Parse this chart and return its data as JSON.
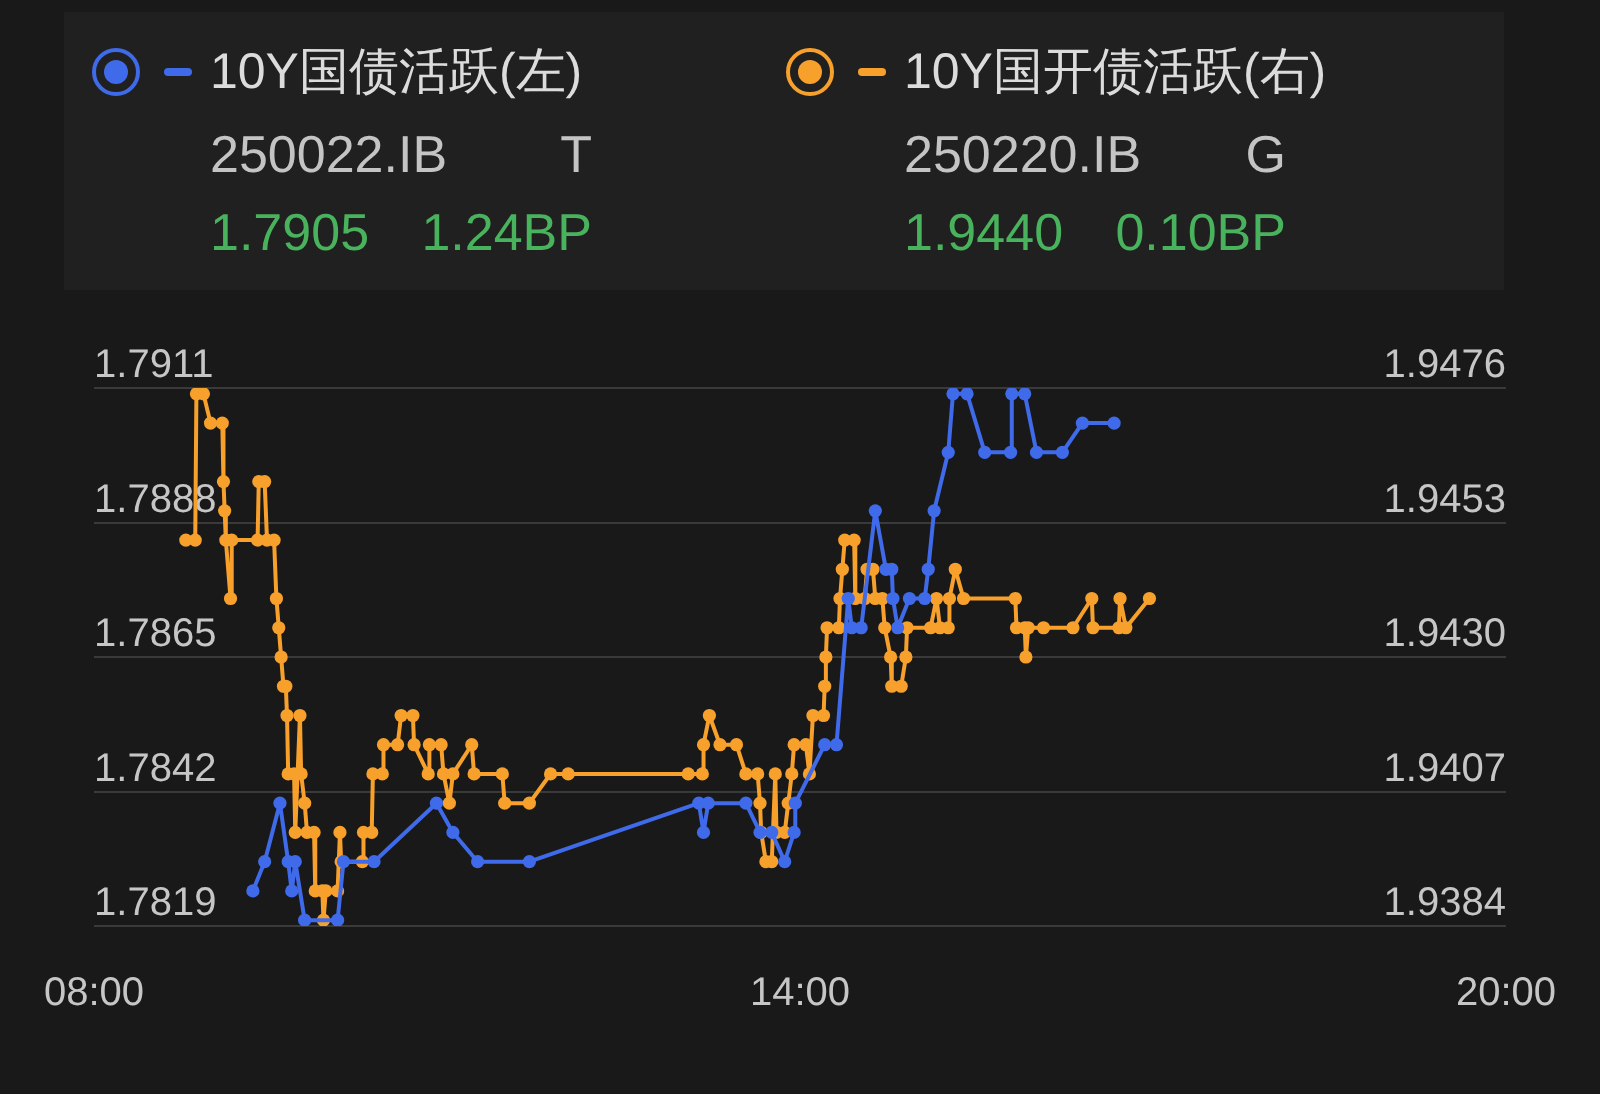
{
  "chart_data": {
    "type": "line",
    "legend": "top",
    "grid": "y",
    "marker": "circle",
    "annotations": [
      "250022.IB",
      "T",
      "1.7905",
      "1.24BP",
      "250220.IB",
      "G",
      "1.9440",
      "0.10BP"
    ],
    "xlim": [
      8,
      20
    ],
    "xticks": [
      {
        "value": 8,
        "label": "08:00"
      },
      {
        "value": 14,
        "label": "14:00"
      },
      {
        "value": 20,
        "label": "20:00"
      }
    ],
    "ylim": [
      1.7819,
      1.7911
    ],
    "yticks": [
      1.7819,
      1.7842,
      1.7865,
      1.7888,
      1.7911
    ],
    "y2lim": [
      1.9384,
      1.9476
    ],
    "y2ticks": [
      1.9384,
      1.9407,
      {
        "value": 1.943,
        "label": "1.9430"
      },
      1.9453,
      1.9476
    ],
    "series": [
      {
        "name": "10Y国债活跃(左)",
        "color": "#3f6bea",
        "x": [
          9.35,
          9.45,
          9.58,
          9.65,
          9.68,
          9.71,
          9.79,
          10.07,
          10.12,
          10.38,
          10.91,
          11.05,
          11.26,
          11.7,
          13.14,
          13.18,
          13.22,
          13.54,
          13.66,
          13.76,
          13.87,
          13.95,
          13.96,
          14.21,
          14.31,
          14.41,
          14.44,
          14.52,
          14.64,
          14.73,
          14.78,
          14.79,
          14.83,
          14.93,
          15.06,
          15.09,
          15.14,
          15.26,
          15.3,
          15.42,
          15.57,
          15.79,
          15.8,
          15.91,
          16.01,
          16.23,
          16.4,
          16.67
        ],
        "values": [
          1.7825,
          1.783,
          1.784,
          1.783,
          1.7825,
          1.783,
          1.782,
          1.782,
          1.783,
          1.783,
          1.784,
          1.7835,
          1.783,
          1.783,
          1.784,
          1.7835,
          1.784,
          1.784,
          1.7835,
          1.7835,
          1.783,
          1.7835,
          1.784,
          1.785,
          1.785,
          1.7875,
          1.787,
          1.787,
          1.789,
          1.788,
          1.788,
          1.7875,
          1.787,
          1.7875,
          1.7875,
          1.788,
          1.789,
          1.79,
          1.791,
          1.791,
          1.79,
          1.79,
          1.791,
          1.791,
          1.79,
          1.79,
          1.7905,
          1.7905
        ]
      },
      {
        "name": "10Y国开债活跃(右)",
        "color": "#f7a12c",
        "axis": "y2",
        "x": [
          8.78,
          8.86,
          8.87,
          8.93,
          8.99,
          9.09,
          9.1,
          9.11,
          9.12,
          9.16,
          9.17,
          9.39,
          9.4,
          9.45,
          9.47,
          9.53,
          9.55,
          9.57,
          9.59,
          9.61,
          9.63,
          9.64,
          9.65,
          9.7,
          9.71,
          9.75,
          9.76,
          9.79,
          9.81,
          9.87,
          9.88,
          9.94,
          9.95,
          9.97,
          10.07,
          10.09,
          10.1,
          10.28,
          10.29,
          10.36,
          10.37,
          10.45,
          10.46,
          10.58,
          10.61,
          10.71,
          10.72,
          10.84,
          10.85,
          10.95,
          10.97,
          11.02,
          11.05,
          11.21,
          11.23,
          11.47,
          11.49,
          11.7,
          11.88,
          12.03,
          13.05,
          13.17,
          13.18,
          13.23,
          13.32,
          13.46,
          13.54,
          13.64,
          13.66,
          13.67,
          13.71,
          13.76,
          13.79,
          13.8,
          13.87,
          13.9,
          13.93,
          13.95,
          14.05,
          14.08,
          14.11,
          14.2,
          14.21,
          14.22,
          14.23,
          14.33,
          14.34,
          14.36,
          14.38,
          14.46,
          14.47,
          14.55,
          14.57,
          14.62,
          14.64,
          14.7,
          14.72,
          14.77,
          14.78,
          14.86,
          14.9,
          14.91,
          15.11,
          15.16,
          15.19,
          15.26,
          15.27,
          15.32,
          15.39,
          15.83,
          15.84,
          15.91,
          15.92,
          15.94,
          16.07,
          16.32,
          16.48,
          16.49,
          16.71,
          16.72,
          16.77,
          16.97
        ],
        "values": [
          1.945,
          1.945,
          1.9475,
          1.9475,
          1.947,
          1.947,
          1.946,
          1.9455,
          1.945,
          1.944,
          1.945,
          1.945,
          1.946,
          1.946,
          1.945,
          1.945,
          1.944,
          1.9435,
          1.943,
          1.9425,
          1.9425,
          1.942,
          1.941,
          1.941,
          1.94,
          1.942,
          1.941,
          1.9405,
          1.94,
          1.94,
          1.939,
          1.939,
          1.9385,
          1.939,
          1.939,
          1.94,
          1.9395,
          1.9395,
          1.94,
          1.94,
          1.941,
          1.941,
          1.9415,
          1.9415,
          1.942,
          1.942,
          1.9415,
          1.941,
          1.9415,
          1.9415,
          1.941,
          1.9405,
          1.941,
          1.9415,
          1.941,
          1.941,
          1.9405,
          1.9405,
          1.941,
          1.941,
          1.941,
          1.941,
          1.9415,
          1.942,
          1.9415,
          1.9415,
          1.941,
          1.941,
          1.9405,
          1.94,
          1.9395,
          1.9395,
          1.941,
          1.94,
          1.94,
          1.9405,
          1.941,
          1.9415,
          1.9415,
          1.941,
          1.942,
          1.942,
          1.9425,
          1.943,
          1.9435,
          1.9435,
          1.944,
          1.9445,
          1.945,
          1.945,
          1.944,
          1.944,
          1.9445,
          1.9445,
          1.944,
          1.944,
          1.9435,
          1.943,
          1.9425,
          1.9425,
          1.943,
          1.9435,
          1.9435,
          1.944,
          1.9435,
          1.9435,
          1.944,
          1.9445,
          1.944,
          1.944,
          1.9435,
          1.9435,
          1.943,
          1.9435,
          1.9435,
          1.9435,
          1.944,
          1.9435,
          1.9435,
          1.944,
          1.9435,
          1.944
        ]
      }
    ]
  }
}
